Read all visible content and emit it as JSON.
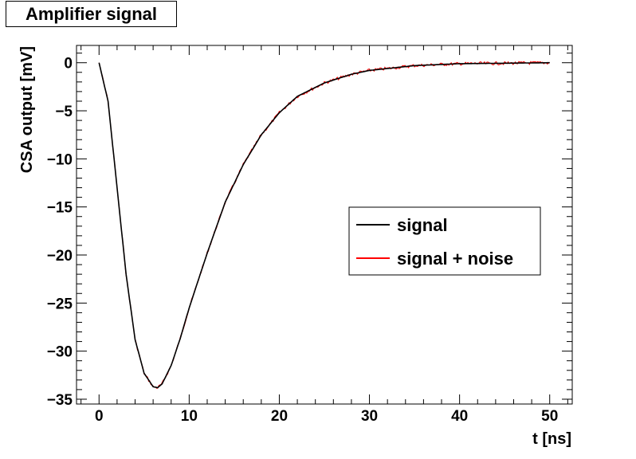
{
  "chart_data": {
    "type": "line",
    "title": "Amplifier signal",
    "xlabel": "t [ns]",
    "ylabel": "CSA output [mV]",
    "xlim": [
      -2.5,
      52.5
    ],
    "ylim": [
      -35.5,
      1.8
    ],
    "xticks": [
      0,
      10,
      20,
      30,
      40,
      50
    ],
    "xtick_labels": [
      "0",
      "10",
      "20",
      "30",
      "40",
      "50"
    ],
    "yticks": [
      0,
      -5,
      -10,
      -15,
      -20,
      -25,
      -30,
      -35
    ],
    "ytick_labels": [
      "0",
      "−5",
      "−10",
      "−15",
      "−20",
      "−25",
      "−30",
      "−35"
    ],
    "grid": false,
    "legend_position": "center-right",
    "series": [
      {
        "name": "signal",
        "color": "#000000",
        "x": [
          0,
          1,
          2,
          3,
          4,
          5,
          6,
          6.5,
          7,
          8,
          9,
          10,
          12,
          14,
          16,
          18,
          20,
          22,
          25,
          28,
          30,
          35,
          40,
          45,
          50
        ],
        "y": [
          0,
          -4,
          -13,
          -22,
          -28.8,
          -32.3,
          -33.7,
          -33.8,
          -33.4,
          -31.5,
          -28.7,
          -25.5,
          -19.8,
          -14.5,
          -10.6,
          -7.5,
          -5.2,
          -3.5,
          -2.1,
          -1.2,
          -0.8,
          -0.3,
          -0.1,
          -0.05,
          0
        ]
      },
      {
        "name": "signal + noise",
        "color": "#ff0000",
        "x": [
          0,
          1,
          2,
          3,
          4,
          5,
          6,
          6.5,
          7,
          8,
          9,
          10,
          12,
          14,
          16,
          18,
          20,
          22,
          25,
          28,
          30,
          35,
          40,
          45,
          50
        ],
        "y": [
          0,
          -4,
          -13,
          -22,
          -28.8,
          -32.3,
          -33.7,
          -33.8,
          -33.4,
          -31.5,
          -28.7,
          -25.5,
          -19.8,
          -14.5,
          -10.6,
          -7.5,
          -5.2,
          -3.5,
          -2.1,
          -1.2,
          -0.8,
          -0.3,
          -0.1,
          -0.05,
          0
        ]
      }
    ]
  }
}
